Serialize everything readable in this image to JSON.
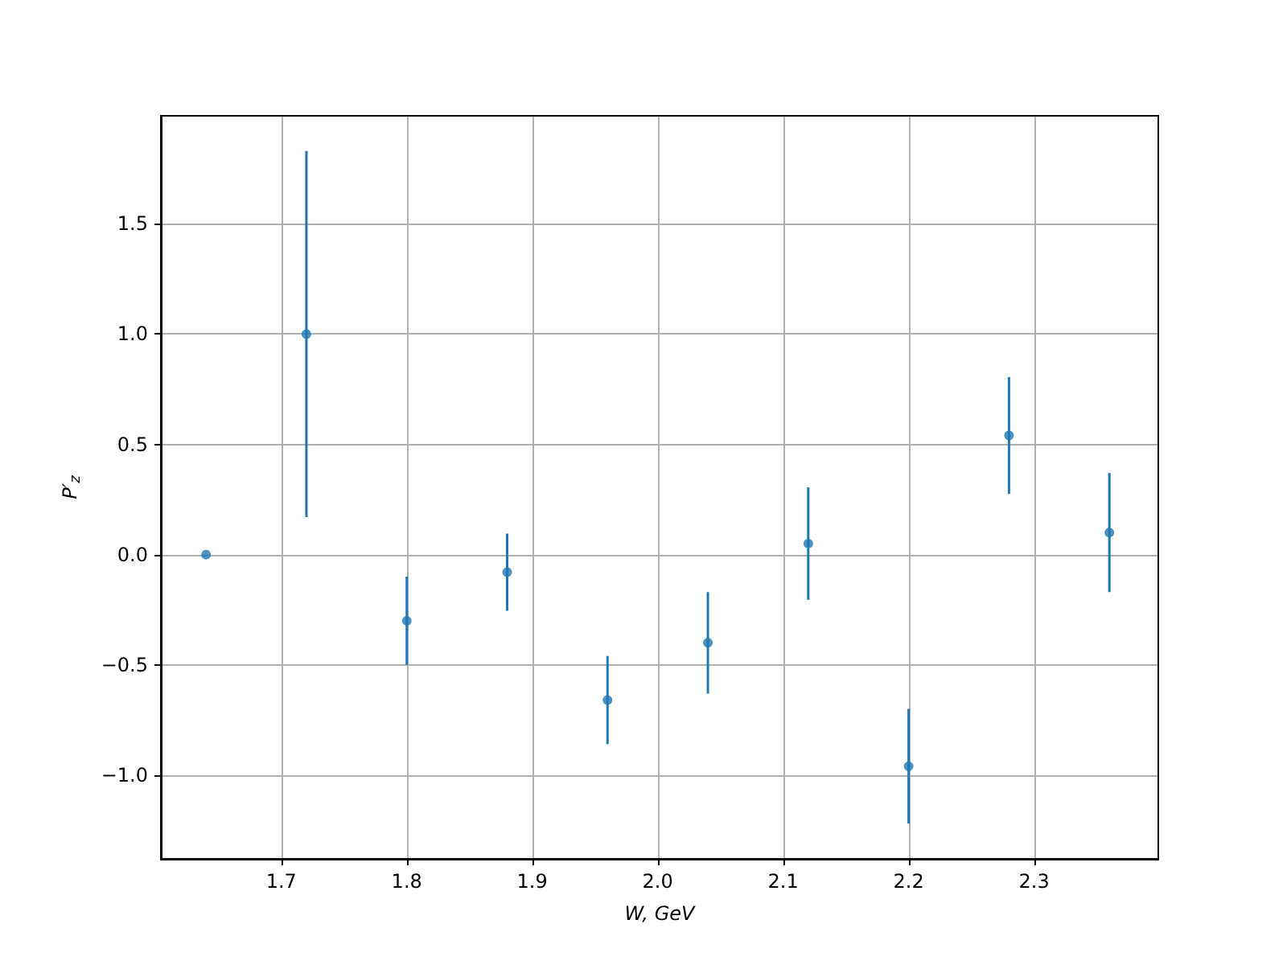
{
  "chart_data": {
    "type": "scatter",
    "xlabel": "W, GeV",
    "ylabel": "P′$_{z}$",
    "x": [
      1.64,
      1.72,
      1.8,
      1.88,
      1.96,
      2.04,
      2.12,
      2.2,
      2.28,
      2.36
    ],
    "values": [
      0.0,
      1.0,
      -0.3,
      -0.08,
      -0.66,
      -0.4,
      0.05,
      -0.96,
      0.54,
      0.1
    ],
    "errors": [
      null,
      0.83,
      0.2,
      0.175,
      0.2,
      0.23,
      0.255,
      0.26,
      0.265,
      0.27
    ],
    "color": "#1f77b4",
    "marker": "circle",
    "grid": true,
    "xlim": [
      1.604,
      2.399
    ],
    "xticks": [
      1.7,
      1.8,
      1.9,
      {
        "value": 2,
        "label": "2.0"
      },
      2.1,
      2.2,
      2.3
    ],
    "ylim": [
      -1.38,
      1.99
    ],
    "yticks": [
      {
        "value": -1,
        "label": "−1.0"
      },
      {
        "value": -0.5,
        "label": "−0.5"
      },
      {
        "value": 0,
        "label": "0.0"
      },
      {
        "value": 0.5,
        "label": "0.5"
      },
      {
        "value": 1,
        "label": "1.0"
      },
      {
        "value": 1.5,
        "label": "1.5"
      }
    ]
  }
}
